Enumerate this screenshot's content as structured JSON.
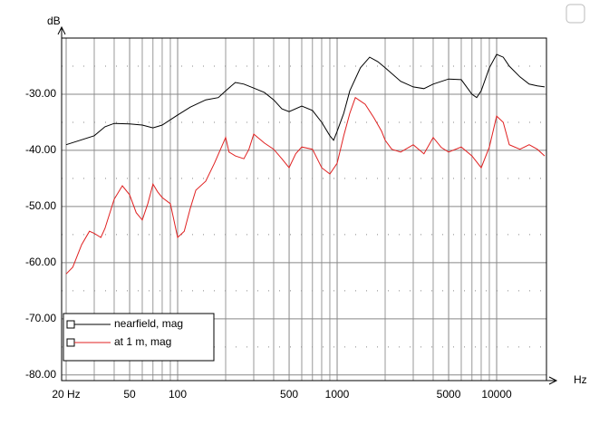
{
  "chart_data": {
    "type": "line",
    "xlabel": "Hz",
    "ylabel": "dB",
    "xscale": "log",
    "grid": true,
    "xlim": [
      20,
      20000
    ],
    "ylim": [
      -81,
      -20
    ],
    "xticks": [
      {
        "value": 20,
        "label": "20 Hz"
      },
      50,
      100,
      500,
      1000,
      5000,
      10000
    ],
    "xminor": [
      30,
      40,
      60,
      70,
      80,
      90,
      200,
      300,
      400,
      600,
      700,
      800,
      900,
      2000,
      3000,
      4000,
      6000,
      7000,
      8000,
      9000
    ],
    "yticks": [
      {
        "value": -30,
        "label": "-30.00"
      },
      {
        "value": -40,
        "label": "-40.00"
      },
      {
        "value": -50,
        "label": "-50.00"
      },
      {
        "value": -60,
        "label": "-60.00"
      },
      {
        "value": -70,
        "label": "-70.00"
      },
      {
        "value": -80,
        "label": "-80.00"
      }
    ],
    "yminor": [
      -25,
      -35,
      -45,
      -55,
      -65,
      -75
    ],
    "series": [
      {
        "name": "nearfield, mag",
        "color": "#000000",
        "x": [
          20,
          30,
          35,
          40,
          50,
          60,
          70,
          80,
          100,
          120,
          150,
          180,
          200,
          230,
          260,
          300,
          350,
          400,
          450,
          500,
          600,
          700,
          800,
          900,
          950,
          1000,
          1100,
          1200,
          1400,
          1600,
          1800,
          2000,
          2500,
          3000,
          3500,
          4000,
          5000,
          6000,
          7000,
          7500,
          8000,
          9000,
          10000,
          11000,
          12000,
          14000,
          16000,
          18000,
          20000
        ],
        "values": [
          -39,
          -37.4,
          -35.8,
          -35.2,
          -35.3,
          -35.5,
          -36,
          -35.5,
          -33.7,
          -32.3,
          -31,
          -30.6,
          -29.4,
          -27.9,
          -28.2,
          -28.9,
          -29.7,
          -31,
          -32.6,
          -33.1,
          -32.1,
          -32.9,
          -35,
          -37.4,
          -38.2,
          -36.6,
          -33.4,
          -29.4,
          -25.3,
          -23.4,
          -24.2,
          -25.3,
          -27.7,
          -28.7,
          -29,
          -28.2,
          -27.3,
          -27.4,
          -30,
          -30.6,
          -29.4,
          -25.3,
          -22.9,
          -23.4,
          -25,
          -26.9,
          -28.2,
          -28.5,
          -28.7
        ]
      },
      {
        "name": "at 1 m, mag",
        "color": "#e02020",
        "x": [
          20,
          22,
          25,
          28,
          30,
          33,
          35,
          40,
          45,
          50,
          55,
          60,
          65,
          70,
          75,
          80,
          90,
          100,
          110,
          120,
          130,
          150,
          170,
          200,
          210,
          230,
          260,
          280,
          300,
          350,
          400,
          450,
          500,
          550,
          600,
          700,
          800,
          900,
          1000,
          1100,
          1200,
          1300,
          1500,
          1700,
          1900,
          2000,
          2200,
          2500,
          3000,
          3500,
          4000,
          4500,
          5000,
          6000,
          7000,
          8000,
          9000,
          10000,
          11000,
          12000,
          14000,
          16000,
          18000,
          20000
        ],
        "values": [
          -62,
          -60.8,
          -56.8,
          -54.4,
          -54.8,
          -55.5,
          -53.9,
          -48.7,
          -46.3,
          -47.9,
          -51.1,
          -52.4,
          -49.5,
          -46,
          -47.4,
          -48.4,
          -49.5,
          -55.5,
          -54.4,
          -50.3,
          -47.1,
          -45.5,
          -42.3,
          -37.7,
          -40.3,
          -41,
          -41.5,
          -39.8,
          -37.1,
          -38.7,
          -39.8,
          -41.5,
          -43.1,
          -40.6,
          -39.4,
          -39.8,
          -43.1,
          -44.2,
          -42.3,
          -37.4,
          -33.4,
          -30.6,
          -31.8,
          -34.2,
          -36.6,
          -38.2,
          -39.8,
          -40.3,
          -39,
          -40.6,
          -37.7,
          -39.5,
          -40.3,
          -39.4,
          -41,
          -43.1,
          -39.4,
          -33.9,
          -35,
          -39,
          -39.8,
          -39,
          -39.8,
          -41
        ]
      }
    ]
  }
}
